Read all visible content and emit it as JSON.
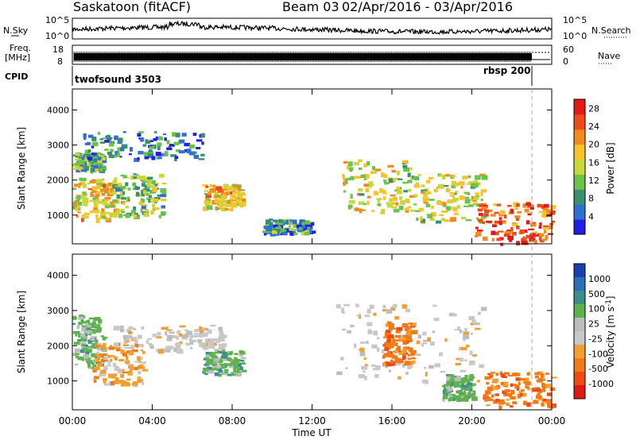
{
  "header": {
    "station": "Saskatoon (fitACF)",
    "beam": "Beam 03",
    "dates": "02/Apr/2016 - 03/Apr/2016"
  },
  "noise_panel": {
    "left_label": "N.Sky",
    "right_label": "N.Search",
    "left_ticks": [
      "10^5",
      "10^0"
    ],
    "right_ticks": [
      "10^5",
      "10^0"
    ]
  },
  "freq_panel": {
    "left_label_1": "Freq.",
    "left_label_2": "[MHz]",
    "left_ticks": [
      "18",
      "8"
    ],
    "right_label": "Nave",
    "right_ticks": [
      "60",
      "0"
    ]
  },
  "cpid_panel": {
    "label": "CPID",
    "programs": [
      {
        "name": "twofsound 3503",
        "start": "00:00"
      },
      {
        "name": "rbsp 200",
        "start": "22:55"
      }
    ]
  },
  "colors": {
    "power": [
      "#1f1fe8",
      "#2f6fd0",
      "#3b8f70",
      "#6cc24a",
      "#c8d83a",
      "#f5c32a",
      "#f28a1e",
      "#ee4a1a",
      "#e31a1a"
    ],
    "velocity": [
      "#1c3fb0",
      "#2a6fb8",
      "#3c8f88",
      "#5fb14e",
      "#bdbdbd",
      "#c8c8c8",
      "#f0a030",
      "#f07a18",
      "#ef4a12",
      "#e01818"
    ]
  },
  "chart_data": [
    {
      "type": "heatmap",
      "quantity": "Power",
      "ylabel": "Slant Range [km]",
      "xlabel": "",
      "x_range": [
        "00:00",
        "00:00"
      ],
      "ylim": [
        180,
        4600
      ],
      "y_ticks": [
        1000,
        2000,
        3000,
        4000
      ],
      "colorbar": {
        "label": "Power [dB]",
        "ticks": [
          4,
          8,
          12,
          16,
          20,
          24,
          28
        ],
        "range": [
          0,
          30
        ]
      },
      "echo_regions": [
        {
          "t_start": 0.0,
          "t_end": 2.2,
          "range_low": 900,
          "range_high": 2100,
          "level_db": 18
        },
        {
          "t_start": 0.0,
          "t_end": 1.5,
          "range_low": 2300,
          "range_high": 2800,
          "level_db": 10
        },
        {
          "t_start": 0.5,
          "t_end": 6.5,
          "range_low": 2600,
          "range_high": 3400,
          "level_db": 5
        },
        {
          "t_start": 2.0,
          "t_end": 4.5,
          "range_low": 1000,
          "range_high": 2200,
          "level_db": 12
        },
        {
          "t_start": 6.5,
          "t_end": 8.5,
          "range_low": 1200,
          "range_high": 1900,
          "level_db": 18
        },
        {
          "t_start": 13.5,
          "t_end": 17.0,
          "range_low": 1100,
          "range_high": 2600,
          "level_db": 15
        },
        {
          "t_start": 17.0,
          "t_end": 20.5,
          "range_low": 800,
          "range_high": 2200,
          "level_db": 16
        },
        {
          "t_start": 20.0,
          "t_end": 24.0,
          "range_low": 200,
          "range_high": 1400,
          "level_db": 26
        },
        {
          "t_start": 9.5,
          "t_end": 12.0,
          "range_low": 500,
          "range_high": 900,
          "level_db": 7
        }
      ]
    },
    {
      "type": "heatmap",
      "quantity": "Velocity",
      "ylabel": "Slant Range [km]",
      "xlabel": "Time UT",
      "x_ticks": [
        "00:00",
        "04:00",
        "08:00",
        "12:00",
        "16:00",
        "20:00",
        "00:00"
      ],
      "ylim": [
        180,
        4600
      ],
      "y_ticks": [
        1000,
        2000,
        3000,
        4000
      ],
      "colorbar": {
        "label": "Velocity [m s^-1]",
        "ticks": [
          1000,
          500,
          100,
          25,
          -25,
          -100,
          -500,
          -1000
        ]
      },
      "echo_regions": [
        {
          "t_start": 0.0,
          "t_end": 1.5,
          "range_low": 1400,
          "range_high": 2900,
          "velocity": 120
        },
        {
          "t_start": 1.0,
          "t_end": 3.5,
          "range_low": 900,
          "range_high": 2100,
          "velocity": -150
        },
        {
          "t_start": 2.0,
          "t_end": 7.5,
          "range_low": 1900,
          "range_high": 2600,
          "velocity": 0
        },
        {
          "t_start": 6.5,
          "t_end": 8.5,
          "range_low": 1200,
          "range_high": 1900,
          "velocity": 150
        },
        {
          "t_start": 13.0,
          "t_end": 20.5,
          "range_low": 1000,
          "range_high": 3200,
          "velocity": 0
        },
        {
          "t_start": 15.5,
          "t_end": 17.0,
          "range_low": 1500,
          "range_high": 2700,
          "velocity": -300
        },
        {
          "t_start": 18.5,
          "t_end": 20.0,
          "range_low": 500,
          "range_high": 1200,
          "velocity": 200
        },
        {
          "t_start": 20.5,
          "t_end": 24.0,
          "range_low": 300,
          "range_high": 1300,
          "velocity": -400
        }
      ]
    }
  ]
}
